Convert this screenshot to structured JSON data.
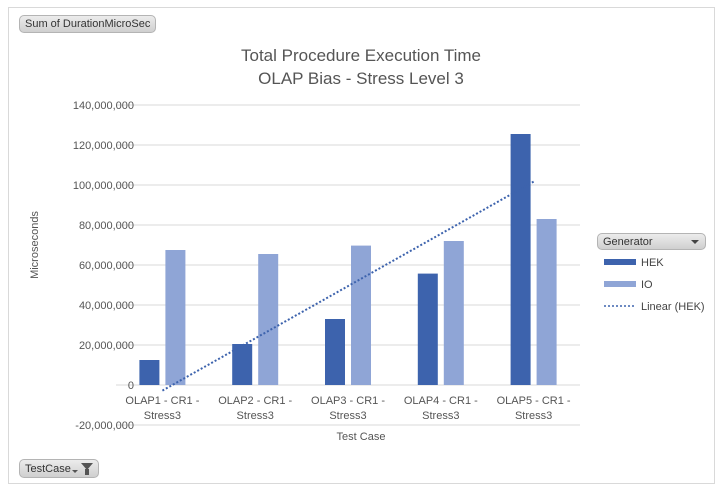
{
  "field_buttons": {
    "values_field": "Sum of DurationMicroSec",
    "axis_field": "TestCase",
    "legend_field": "Generator"
  },
  "legend": {
    "items": [
      {
        "label": "HEK",
        "color": "#3d63ad",
        "style": "bar"
      },
      {
        "label": "IO",
        "color": "#8fa5d6",
        "style": "bar"
      },
      {
        "label": "Linear (HEK)",
        "color": "#3d63ad",
        "style": "dotted"
      }
    ]
  },
  "chart_data": {
    "type": "bar",
    "title": "Total Procedure Execution Time",
    "subtitle": "OLAP Bias - Stress Level 3",
    "xlabel": "Test Case",
    "ylabel": "Microseconds",
    "ylim": [
      -20000000,
      140000000
    ],
    "yticks": [
      -20000000,
      0,
      20000000,
      40000000,
      60000000,
      80000000,
      100000000,
      120000000,
      140000000
    ],
    "ytick_labels": [
      "-20,000,000",
      "0",
      "20,000,000",
      "40,000,000",
      "60,000,000",
      "80,000,000",
      "100,000,000",
      "120,000,000",
      "140,000,000"
    ],
    "categories": [
      [
        "OLAP1 - CR1 -",
        "Stress3"
      ],
      [
        "OLAP2 - CR1 -",
        "Stress3"
      ],
      [
        "OLAP3 - CR1 -",
        "Stress3"
      ],
      [
        "OLAP4 - CR1 -",
        "Stress3"
      ],
      [
        "OLAP5 - CR1 -",
        "Stress3"
      ]
    ],
    "series": [
      {
        "name": "HEK",
        "color": "#3d63ad",
        "values": [
          12500000,
          20500000,
          33000000,
          55700000,
          125500000
        ]
      },
      {
        "name": "IO",
        "color": "#8fa5d6",
        "values": [
          67500000,
          65500000,
          69700000,
          72000000,
          83000000
        ]
      }
    ],
    "trendline": {
      "name": "Linear (HEK)",
      "series": "HEK",
      "type": "linear"
    },
    "grid": true,
    "legend_position": "right"
  }
}
